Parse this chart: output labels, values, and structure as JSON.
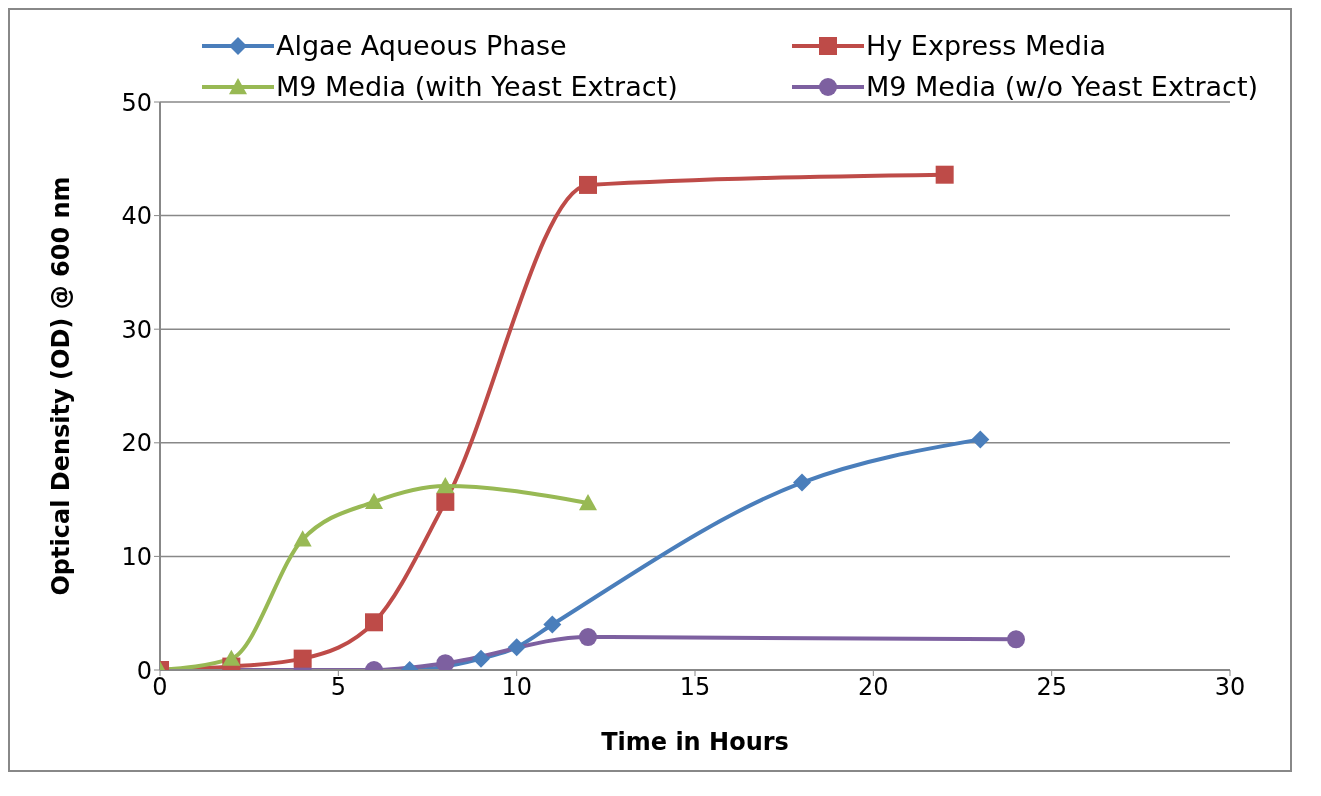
{
  "chart_data": {
    "type": "line",
    "xlabel": "Time in Hours",
    "ylabel": "Optical Density (OD) @ 600 nm",
    "xlim": [
      0,
      30
    ],
    "xticks": [
      0,
      5,
      10,
      15,
      20,
      25,
      30
    ],
    "ylim": [
      0,
      50
    ],
    "yticks": [
      0,
      10,
      20,
      30,
      40,
      50
    ],
    "grid": "y",
    "legend": "top",
    "line_style": "solid",
    "series": [
      {
        "name": "Algae Aqueous Phase",
        "color": "#4a7ebb",
        "marker": "diamond",
        "x": [
          0,
          7,
          9,
          10,
          11,
          18,
          23
        ],
        "values": [
          0,
          0,
          1,
          2,
          4,
          16.5,
          20.3
        ]
      },
      {
        "name": "Hy Express Media",
        "color": "#be4b48",
        "marker": "square",
        "x": [
          0,
          2,
          4,
          6,
          8,
          12,
          22
        ],
        "values": [
          0,
          0.3,
          1,
          4.2,
          14.8,
          42.7,
          43.6
        ]
      },
      {
        "name": "M9 Media (with Yeast Extract)",
        "color": "#98b954",
        "marker": "triangle",
        "x": [
          0,
          2,
          4,
          6,
          8,
          12
        ],
        "values": [
          0,
          1,
          11.5,
          14.8,
          16.2,
          14.7
        ]
      },
      {
        "name": "M9 Media (w/o Yeast Extract)",
        "color": "#7d60a0",
        "marker": "circle",
        "x": [
          0,
          2,
          4,
          6,
          8,
          12,
          24
        ],
        "values": [
          0,
          0,
          0,
          0,
          0.6,
          2.9,
          2.7
        ]
      }
    ]
  }
}
